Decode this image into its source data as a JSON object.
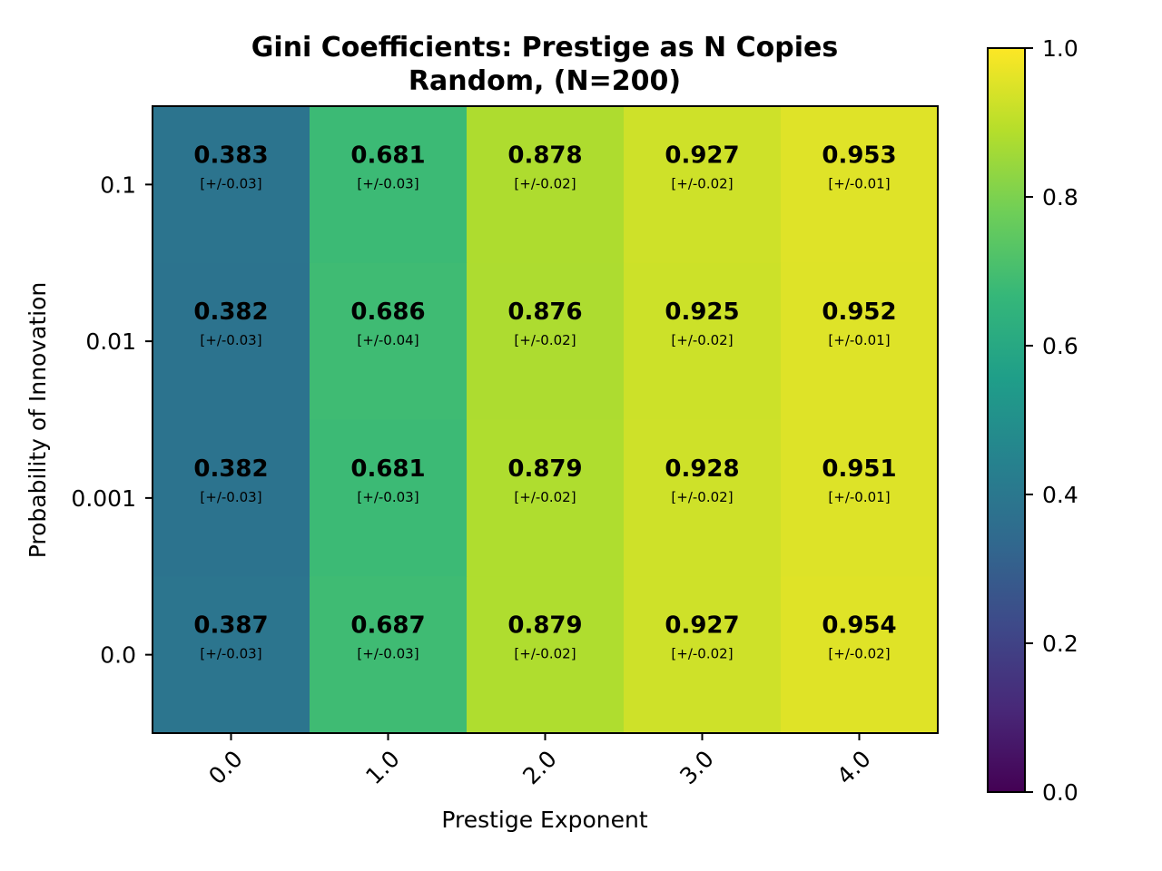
{
  "chart_data": {
    "type": "heatmap",
    "title_lines": [
      "Gini Coefficients: Prestige as N Copies",
      "Random, (N=200)"
    ],
    "xlabel": "Prestige Exponent",
    "ylabel": "Probability of Innovation",
    "x_categories": [
      "0.0",
      "1.0",
      "2.0",
      "3.0",
      "4.0"
    ],
    "y_categories": [
      "0.1",
      "0.01",
      "0.001",
      "0.0"
    ],
    "values": [
      [
        "0.383",
        "0.681",
        "0.878",
        "0.927",
        "0.953"
      ],
      [
        "0.382",
        "0.686",
        "0.876",
        "0.925",
        "0.952"
      ],
      [
        "0.382",
        "0.681",
        "0.879",
        "0.928",
        "0.951"
      ],
      [
        "0.387",
        "0.687",
        "0.879",
        "0.927",
        "0.954"
      ]
    ],
    "errors": [
      [
        "[+/-0.03]",
        "[+/-0.03]",
        "[+/-0.02]",
        "[+/-0.02]",
        "[+/-0.01]"
      ],
      [
        "[+/-0.03]",
        "[+/-0.04]",
        "[+/-0.02]",
        "[+/-0.02]",
        "[+/-0.01]"
      ],
      [
        "[+/-0.03]",
        "[+/-0.03]",
        "[+/-0.02]",
        "[+/-0.02]",
        "[+/-0.01]"
      ],
      [
        "[+/-0.03]",
        "[+/-0.03]",
        "[+/-0.02]",
        "[+/-0.02]",
        "[+/-0.02]"
      ]
    ],
    "colormap": "viridis",
    "color_range": [
      0.0,
      1.0
    ],
    "colorbar_ticks": [
      "0.0",
      "0.2",
      "0.4",
      "0.6",
      "0.8",
      "1.0"
    ],
    "legend_placement": "colorbar-right",
    "grid": false
  },
  "colors": {
    "viridis_stops": [
      "#440154",
      "#482878",
      "#3e4989",
      "#31688e",
      "#26828e",
      "#1f9e89",
      "#35b779",
      "#6ece58",
      "#b5de2b",
      "#fde725"
    ],
    "frame": "#000000",
    "background": "#ffffff"
  }
}
